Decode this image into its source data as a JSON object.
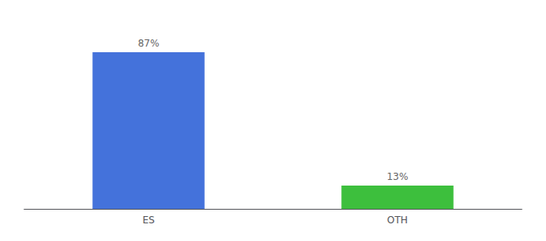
{
  "chart_data": {
    "type": "bar",
    "categories": [
      "ES",
      "OTH"
    ],
    "values": [
      87,
      13
    ],
    "value_labels": [
      "87%",
      "13%"
    ],
    "colors": [
      "#4472db",
      "#3dbf3d"
    ],
    "ylim": [
      0,
      100
    ],
    "data_labels": true,
    "tick_labels": "x",
    "grid": false
  }
}
